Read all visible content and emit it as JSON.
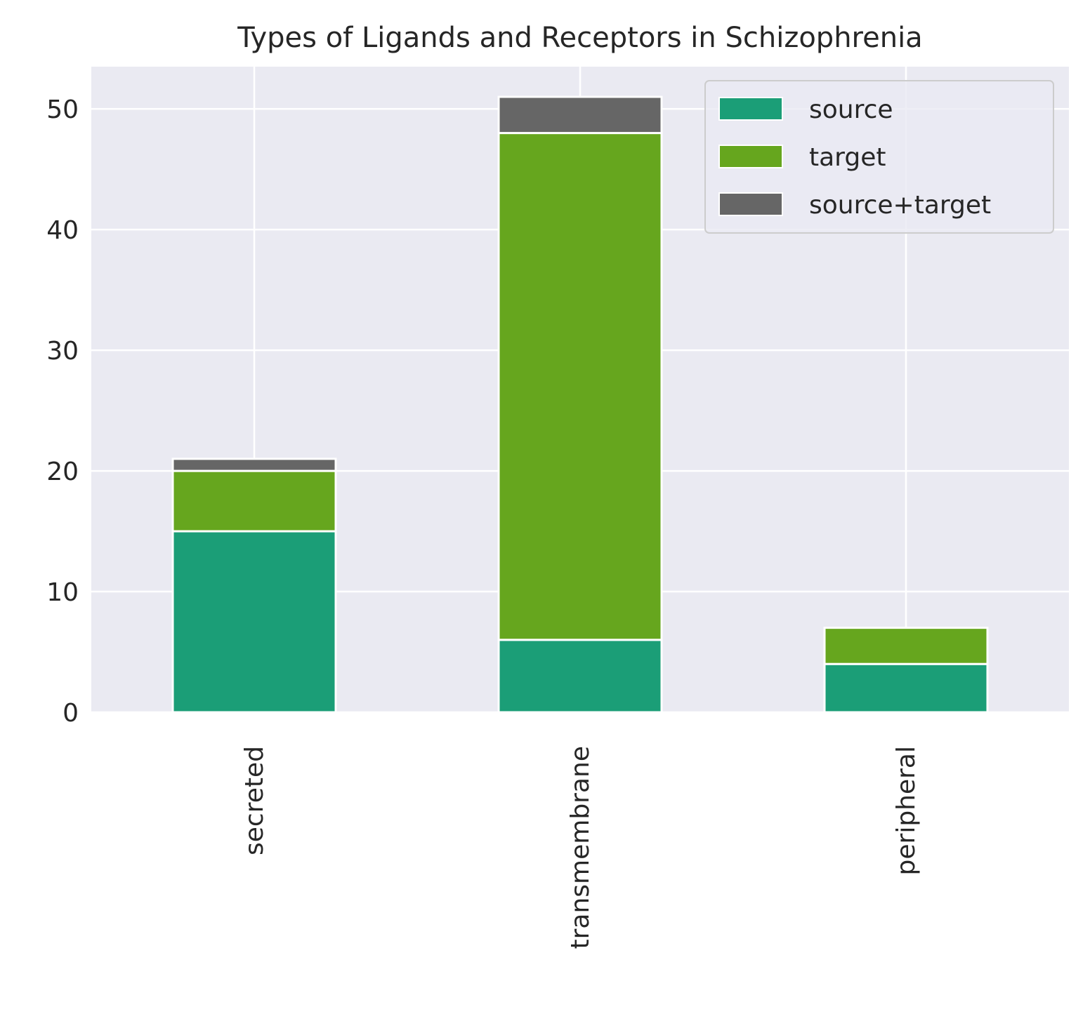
{
  "chart_data": {
    "type": "bar",
    "stacked": true,
    "title": "Types of Ligands and Receptors in Schizophrenia",
    "xlabel": "",
    "ylabel": "",
    "categories": [
      "secreted",
      "transmembrane",
      "peripheral"
    ],
    "series": [
      {
        "name": "source",
        "values": [
          15,
          6,
          4
        ],
        "color": "#1b9e77"
      },
      {
        "name": "target",
        "values": [
          5,
          42,
          3
        ],
        "color": "#66a61e"
      },
      {
        "name": "source+target",
        "values": [
          1,
          3,
          0
        ],
        "color": "#666666"
      }
    ],
    "ylim": [
      0,
      53.5
    ],
    "yticks": [
      0,
      10,
      20,
      30,
      40,
      50
    ],
    "grid": true,
    "background_color": "#eaeaf2",
    "legend_position": "top-right"
  }
}
